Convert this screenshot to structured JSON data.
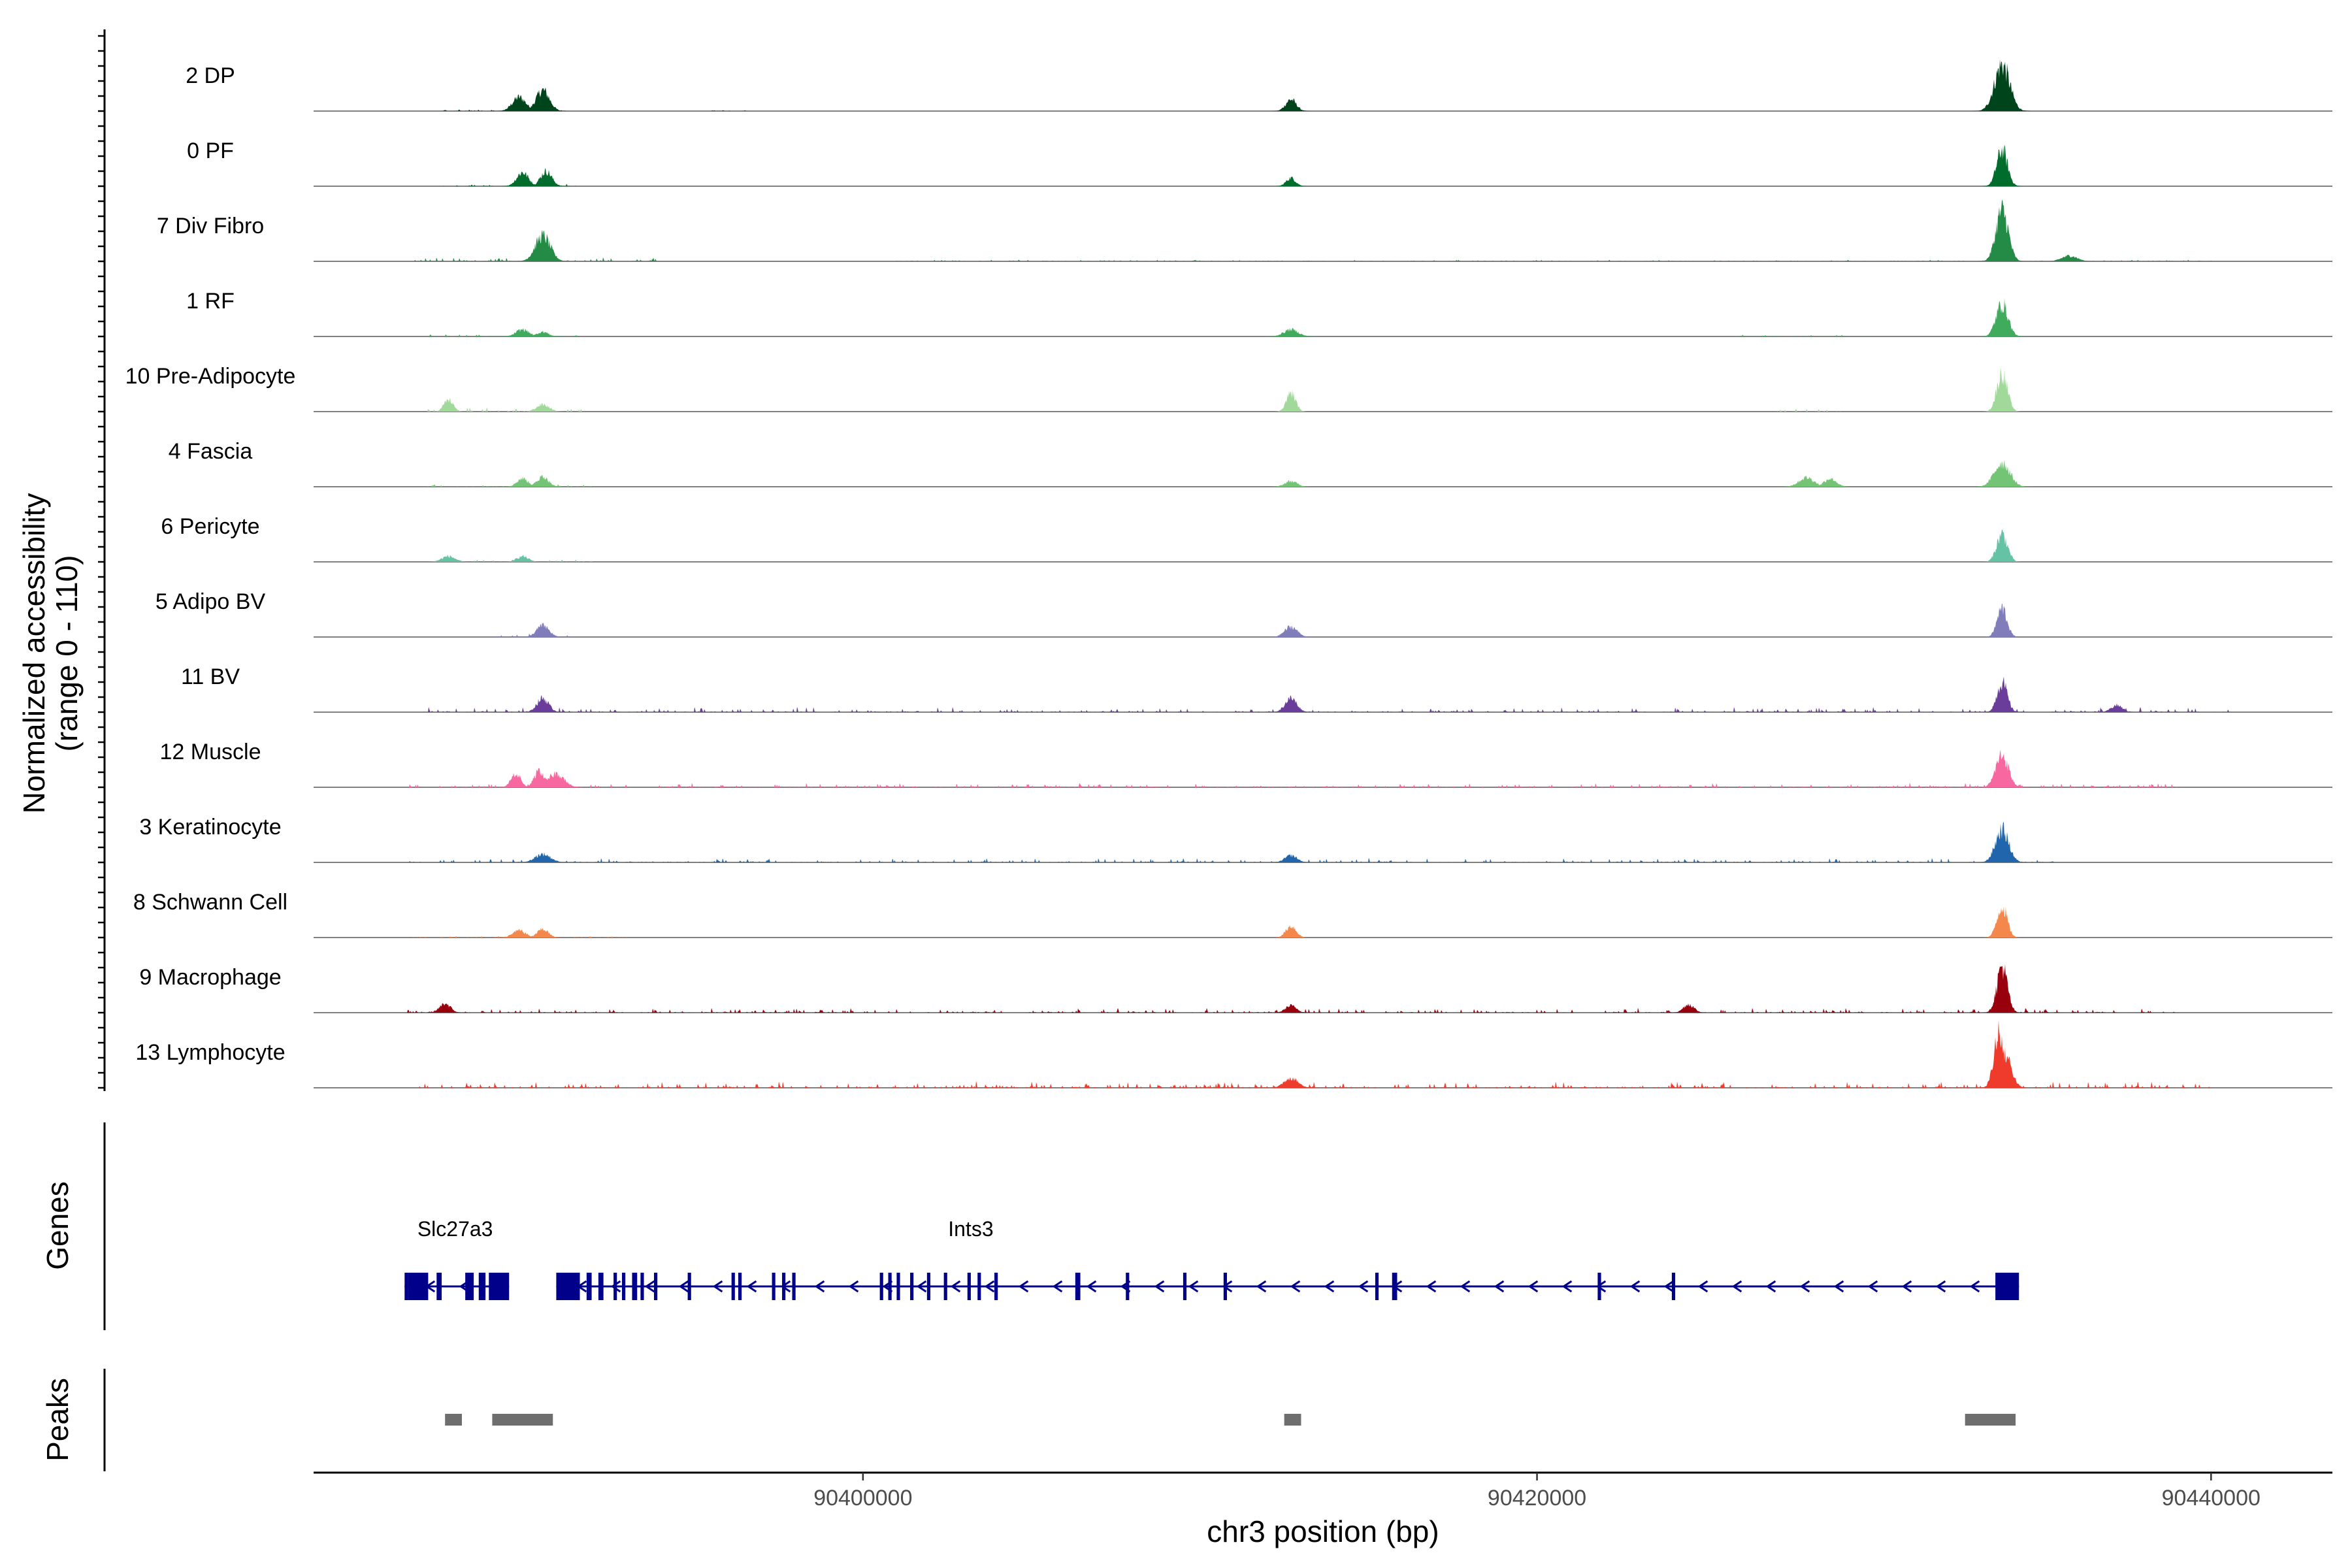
{
  "chart_data": {
    "type": "area",
    "title": "",
    "chromosome": "chr3",
    "xlabel": "chr3 position (bp)",
    "xlim": [
      90383700,
      90443600
    ],
    "xticks": [
      90400000,
      90420000,
      90440000
    ],
    "xtick_labels": [
      "90400000",
      "90420000",
      "90440000"
    ],
    "ylabel_line1": "Normalized accessibility",
    "ylabel_line2": "(range 0 - 110)",
    "ylim": [
      0,
      110
    ],
    "tracks": [
      {
        "name": "2 DP",
        "color": "#00441B",
        "peaks": [
          [
            90389800,
            30
          ],
          [
            90390500,
            45
          ],
          [
            90412700,
            25
          ],
          [
            90433800,
            100
          ]
        ],
        "noise": [
          [
            90387500,
            90391500,
            5
          ],
          [
            90395500,
            90396500,
            2
          ]
        ]
      },
      {
        "name": "0 PF",
        "color": "#006D2C",
        "peaks": [
          [
            90389900,
            30
          ],
          [
            90390600,
            32
          ],
          [
            90412700,
            18
          ],
          [
            90433800,
            78
          ]
        ],
        "noise": [
          [
            90387500,
            90391500,
            5
          ]
        ]
      },
      {
        "name": "7 Div Fibro",
        "color": "#238B45",
        "peaks": [
          [
            90390500,
            55
          ],
          [
            90433800,
            110
          ],
          [
            90435800,
            12
          ]
        ],
        "noise": [
          [
            90386500,
            90394000,
            8
          ],
          [
            90401000,
            90440000,
            3
          ]
        ]
      },
      {
        "name": "1 RF",
        "color": "#41AB5D",
        "peaks": [
          [
            90389900,
            15
          ],
          [
            90390500,
            10
          ],
          [
            90412700,
            15
          ],
          [
            90433800,
            70
          ]
        ],
        "noise": [
          [
            90387000,
            90391500,
            6
          ],
          [
            90426000,
            90430000,
            3
          ]
        ]
      },
      {
        "name": "10 Pre-Adipocyte",
        "color": "#A1D99B",
        "peaks": [
          [
            90387700,
            25
          ],
          [
            90390500,
            15
          ],
          [
            90412700,
            40
          ],
          [
            90433800,
            82
          ]
        ],
        "noise": [
          [
            90387000,
            90392000,
            8
          ],
          [
            90427000,
            90429000,
            6
          ]
        ]
      },
      {
        "name": "4 Fascia",
        "color": "#74C476",
        "peaks": [
          [
            90389900,
            18
          ],
          [
            90390500,
            22
          ],
          [
            90412700,
            12
          ],
          [
            90428000,
            20
          ],
          [
            90428700,
            18
          ],
          [
            90433800,
            52
          ]
        ],
        "noise": [
          [
            90387000,
            90392000,
            5
          ]
        ]
      },
      {
        "name": "6 Pericyte",
        "color": "#66C2A4",
        "peaks": [
          [
            90387700,
            12
          ],
          [
            90389900,
            12
          ],
          [
            90433800,
            60
          ]
        ],
        "noise": [
          [
            90387000,
            90392000,
            4
          ]
        ]
      },
      {
        "name": "5 Adipo BV",
        "color": "#807DBA",
        "peaks": [
          [
            90390500,
            25
          ],
          [
            90412700,
            22
          ],
          [
            90433800,
            62
          ]
        ],
        "noise": [
          [
            90389000,
            90391500,
            6
          ]
        ]
      },
      {
        "name": "11 BV",
        "color": "#6A3D9A",
        "peaks": [
          [
            90390500,
            30
          ],
          [
            90412700,
            30
          ],
          [
            90433800,
            65
          ],
          [
            90437200,
            15
          ]
        ],
        "noise": [
          [
            90387000,
            90440500,
            10
          ]
        ]
      },
      {
        "name": "12 Muscle",
        "color": "#F768A1",
        "peaks": [
          [
            90389700,
            30
          ],
          [
            90390400,
            35
          ],
          [
            90390900,
            30
          ],
          [
            90433800,
            70
          ]
        ],
        "noise": [
          [
            90386500,
            90439000,
            8
          ]
        ]
      },
      {
        "name": "3 Keratinocyte",
        "color": "#2166AC",
        "peaks": [
          [
            90390500,
            18
          ],
          [
            90412700,
            15
          ],
          [
            90433800,
            70
          ]
        ],
        "noise": [
          [
            90386500,
            90435500,
            8
          ]
        ]
      },
      {
        "name": "8 Schwann Cell",
        "color": "#F4874B",
        "peaks": [
          [
            90389800,
            15
          ],
          [
            90390500,
            18
          ],
          [
            90412700,
            25
          ],
          [
            90433800,
            68
          ]
        ],
        "noise": [
          [
            90386500,
            90393000,
            4
          ]
        ]
      },
      {
        "name": "9 Macrophage",
        "color": "#99000D",
        "peaks": [
          [
            90387600,
            20
          ],
          [
            90412700,
            15
          ],
          [
            90424500,
            18
          ],
          [
            90433800,
            100
          ]
        ],
        "noise": [
          [
            90386500,
            90439000,
            9
          ]
        ]
      },
      {
        "name": "13 Lymphocyte",
        "color": "#EF3B2C",
        "peaks": [
          [
            90433700,
            115
          ],
          [
            90433900,
            70
          ],
          [
            90412700,
            22
          ]
        ],
        "noise": [
          [
            90386500,
            90440000,
            12
          ]
        ]
      }
    ],
    "genes_label": "Genes",
    "genes": [
      {
        "name": "Slc27a3",
        "start": 90386400,
        "end": 90389500,
        "strand": "-",
        "exons": [
          [
            90386400,
            90386500
          ],
          [
            90386500,
            90387100
          ],
          [
            90387350,
            90387500
          ],
          [
            90388200,
            90388450
          ],
          [
            90388600,
            90388800
          ],
          [
            90388900,
            90389500
          ]
        ]
      },
      {
        "name": "Ints3",
        "start": 90390900,
        "end": 90434300,
        "strand": "-",
        "exons": [
          [
            90390900,
            90391600
          ],
          [
            90391800,
            90391950
          ],
          [
            90392150,
            90392300
          ],
          [
            90392600,
            90392700
          ],
          [
            90392850,
            90392950
          ],
          [
            90393150,
            90393300
          ],
          [
            90393400,
            90393500
          ],
          [
            90393800,
            90393900
          ],
          [
            90394800,
            90394900
          ],
          [
            90396100,
            90396200
          ],
          [
            90396300,
            90396400
          ],
          [
            90397300,
            90397400
          ],
          [
            90397600,
            90397700
          ],
          [
            90397900,
            90398000
          ],
          [
            90400500,
            90400600
          ],
          [
            90400750,
            90400850
          ],
          [
            90401000,
            90401100
          ],
          [
            90401400,
            90401500
          ],
          [
            90401900,
            90402000
          ],
          [
            90402400,
            90402500
          ],
          [
            90403100,
            90403200
          ],
          [
            90403400,
            90403500
          ],
          [
            90403900,
            90404000
          ],
          [
            90406300,
            90406450
          ],
          [
            90407800,
            90407900
          ],
          [
            90409500,
            90409600
          ],
          [
            90410700,
            90410800
          ],
          [
            90415200,
            90415300
          ],
          [
            90415700,
            90415850
          ],
          [
            90421800,
            90421900
          ],
          [
            90424000,
            90424100
          ],
          [
            90433600,
            90434300
          ]
        ]
      }
    ],
    "peaks_label": "Peaks",
    "peak_regions": [
      [
        90387600,
        90388100
      ],
      [
        90389000,
        90390800
      ],
      [
        90412500,
        90413000
      ],
      [
        90432700,
        90434200
      ]
    ]
  }
}
